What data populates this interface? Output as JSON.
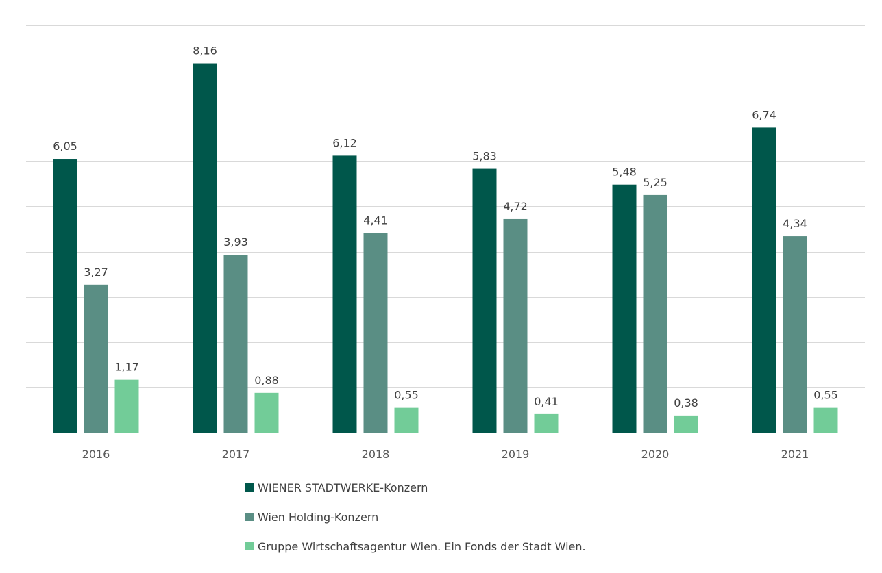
{
  "chart_data": {
    "type": "bar",
    "title": "",
    "xlabel": "",
    "ylabel": "",
    "categories": [
      "2016",
      "2017",
      "2018",
      "2019",
      "2020",
      "2021"
    ],
    "ylim": [
      0,
      9
    ],
    "grid": true,
    "legend_position": "bottom",
    "series": [
      {
        "name": "WIENER STADTWERKE-Konzern",
        "color": "#00574b",
        "values": [
          6.05,
          8.16,
          6.12,
          5.83,
          5.48,
          6.74
        ],
        "labels": [
          "6,05",
          "8,16",
          "6,12",
          "5,83",
          "5,48",
          "6,74"
        ]
      },
      {
        "name": "Wien Holding-Konzern",
        "color": "#5a8e84",
        "values": [
          3.27,
          3.93,
          4.41,
          4.72,
          5.25,
          4.34
        ],
        "labels": [
          "3,27",
          "3,93",
          "4,41",
          "4,72",
          "5,25",
          "4,34"
        ]
      },
      {
        "name": "Gruppe Wirtschaftsagentur Wien. Ein Fonds der Stadt Wien.",
        "color": "#72cc98",
        "values": [
          1.17,
          0.88,
          0.55,
          0.41,
          0.38,
          0.55
        ],
        "labels": [
          "1,17",
          "0,88",
          "0,55",
          "0,41",
          "0,38",
          "0,55"
        ]
      }
    ]
  }
}
